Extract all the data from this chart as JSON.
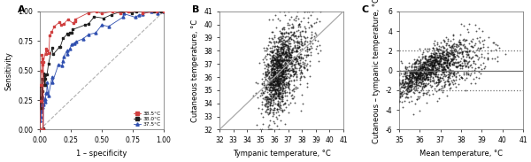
{
  "panel_A": {
    "label": "A",
    "xlabel": "1 – specificity",
    "ylabel": "Sensitivity",
    "xlim": [
      0,
      1.0
    ],
    "ylim": [
      0.0,
      1.0
    ],
    "xticks": [
      0.0,
      0.25,
      0.5,
      0.75,
      1.0
    ],
    "yticks": [
      0.0,
      0.25,
      0.5,
      0.75,
      1.0
    ],
    "curves": {
      "38.5C": {
        "color": "#d04040",
        "marker": "s",
        "label": "38.5°C"
      },
      "38.0C": {
        "color": "#202020",
        "marker": "s",
        "label": "38.0°C"
      },
      "37.5C": {
        "color": "#3050b0",
        "marker": "^",
        "label": "37.5°C"
      }
    },
    "diag_color": "#b0b0b0"
  },
  "panel_B": {
    "label": "B",
    "xlabel": "Tympanic temperature, °C",
    "ylabel": "Cutaneous temperature, °C",
    "xlim": [
      32,
      41
    ],
    "ylim": [
      32,
      41
    ],
    "xticks": [
      32,
      33,
      34,
      35,
      36,
      37,
      38,
      39,
      40,
      41
    ],
    "yticks": [
      32,
      33,
      34,
      35,
      36,
      37,
      38,
      39,
      40,
      41
    ],
    "identity_line_color": "#aaaaaa",
    "n_pts": 1500
  },
  "panel_C": {
    "label": "C",
    "xlabel": "Mean temperature, °C",
    "ylabel": "Cutaneous – tympanic temperature, °C",
    "xlim": [
      35,
      41
    ],
    "ylim": [
      -6,
      6
    ],
    "xticks": [
      35,
      36,
      37,
      38,
      39,
      40,
      41
    ],
    "yticks": [
      -6,
      -4,
      -2,
      0,
      2,
      4,
      6
    ],
    "mean_line": 0.0,
    "upper_loa": 2.05,
    "lower_loa": -2.05,
    "line_color": "#707070"
  },
  "dot_color": "#111111",
  "dot_size": 1.8,
  "font_size": 6,
  "label_font_size": 8,
  "tick_font_size": 5.5
}
